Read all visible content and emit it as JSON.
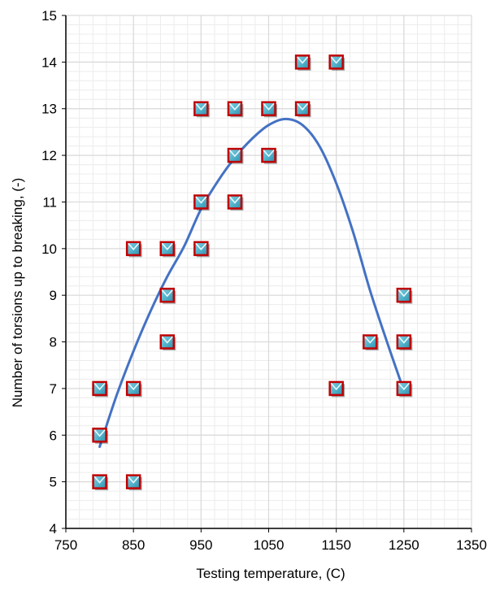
{
  "chart_data": {
    "type": "scatter",
    "title": "",
    "xlabel": "Testing temperature, (C)",
    "ylabel": "Number of torsions up to breaking, (-)",
    "xlim": [
      750,
      1350
    ],
    "ylim": [
      4,
      15
    ],
    "x_ticks": [
      750,
      850,
      950,
      1050,
      1150,
      1250,
      1350
    ],
    "y_ticks": [
      4,
      5,
      6,
      7,
      8,
      9,
      10,
      11,
      12,
      13,
      14,
      15
    ],
    "x_tick_labels": [
      "750",
      "850",
      "950",
      "1050",
      "1150",
      "1250",
      "1350"
    ],
    "y_tick_labels": [
      "4",
      "5",
      "6",
      "7",
      "8",
      "9",
      "10",
      "11",
      "12",
      "13",
      "14",
      "15"
    ],
    "grid": true,
    "series": [
      {
        "type": "scatter",
        "marker": "square-envelope",
        "fill_color": "#4bacc6",
        "edge_color": "#c00000",
        "points": [
          [
            800,
            5
          ],
          [
            800,
            6
          ],
          [
            800,
            7
          ],
          [
            850,
            5
          ],
          [
            850,
            7
          ],
          [
            850,
            10
          ],
          [
            900,
            8
          ],
          [
            900,
            9
          ],
          [
            900,
            10
          ],
          [
            950,
            10
          ],
          [
            950,
            11
          ],
          [
            950,
            13
          ],
          [
            1000,
            11
          ],
          [
            1000,
            12
          ],
          [
            1000,
            13
          ],
          [
            1050,
            12
          ],
          [
            1050,
            13
          ],
          [
            1100,
            13
          ],
          [
            1100,
            14
          ],
          [
            1150,
            7
          ],
          [
            1150,
            14
          ],
          [
            1200,
            8
          ],
          [
            1250,
            7
          ],
          [
            1250,
            8
          ],
          [
            1250,
            9
          ]
        ]
      },
      {
        "type": "line",
        "color": "#4472c4",
        "points": [
          [
            800,
            5.75
          ],
          [
            825,
            6.85
          ],
          [
            850,
            7.8
          ],
          [
            875,
            8.65
          ],
          [
            900,
            9.4
          ],
          [
            925,
            10.05
          ],
          [
            950,
            10.85
          ],
          [
            975,
            11.45
          ],
          [
            1000,
            11.95
          ],
          [
            1025,
            12.35
          ],
          [
            1050,
            12.65
          ],
          [
            1075,
            12.78
          ],
          [
            1100,
            12.65
          ],
          [
            1125,
            12.2
          ],
          [
            1150,
            11.4
          ],
          [
            1175,
            10.35
          ],
          [
            1200,
            9.1
          ],
          [
            1225,
            8.0
          ],
          [
            1250,
            6.95
          ]
        ]
      }
    ],
    "colors": {
      "grid_major": "#d9d9d9",
      "grid_minor": "#ececec",
      "axis": "#000000"
    }
  }
}
